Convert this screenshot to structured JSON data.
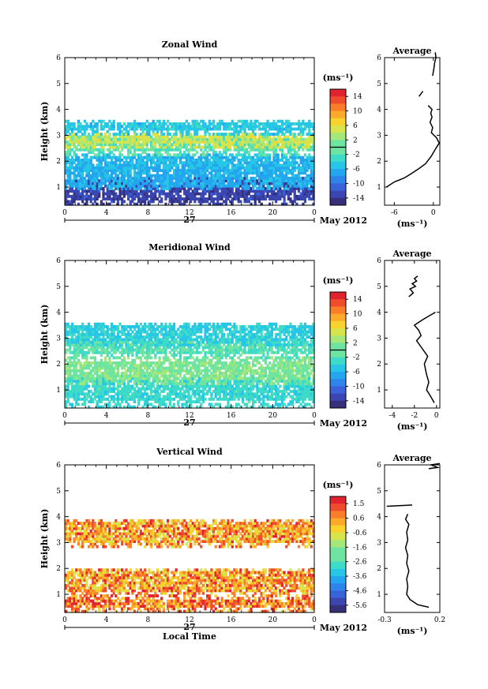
{
  "chart_data": [
    {
      "type": "heatmap",
      "title": "Zonal Wind",
      "ylabel": "Height (km)",
      "xlabel": "",
      "x_ticks": [
        "0",
        "4",
        "8",
        "12",
        "16",
        "20",
        "0"
      ],
      "y_ticks": [
        "1",
        "2",
        "3",
        "4",
        "5",
        "6"
      ],
      "xlim": [
        0,
        24
      ],
      "ylim": [
        0.3,
        6
      ],
      "date_center": "27",
      "date_right": "May 2012",
      "colorbar": {
        "unit": "(ms⁻¹)",
        "tick_labels": [
          "14",
          "10",
          "6",
          "2",
          "-2",
          "-6",
          "-10",
          "-14"
        ],
        "range": [
          -16,
          16
        ],
        "highlight_level": 0
      },
      "field_layers": [
        {
          "y0": 0.3,
          "y1": 1.4,
          "value": -13
        },
        {
          "y0": 0.8,
          "y1": 1.9,
          "value": -6
        },
        {
          "y0": 1.6,
          "y1": 2.3,
          "value": -5
        },
        {
          "y0": 2.2,
          "y1": 3.0,
          "value": -1
        },
        {
          "y0": 2.5,
          "y1": 3.1,
          "value": 4
        },
        {
          "y0": 3.0,
          "y1": 3.6,
          "value": -4
        }
      ],
      "profile": {
        "title": "Average",
        "xlabel": "(ms⁻¹)",
        "x_ticks": [
          "-6",
          "0"
        ],
        "xlim": [
          -7.5,
          1
        ],
        "x": [
          -7.2,
          -6,
          -4.5,
          -3.5,
          -2.3,
          -1.2,
          -0.3,
          0.4,
          0.9,
          0.5,
          -0.3,
          -0.1,
          -0.5,
          -0.2,
          -0.4,
          -0.2,
          -0.8
        ],
        "y": [
          1.0,
          1.2,
          1.35,
          1.5,
          1.7,
          1.9,
          2.2,
          2.5,
          2.7,
          2.9,
          3.1,
          3.3,
          3.5,
          3.7,
          3.85,
          4.0,
          4.15
        ],
        "upper_x": [
          -0.1,
          0.1,
          0.2,
          0.4,
          0.3
        ],
        "upper_y": [
          5.3,
          5.6,
          5.8,
          6.0,
          6.2
        ],
        "fragment_x": [
          -2.2,
          -1.6
        ],
        "fragment_y": [
          4.5,
          4.7
        ]
      }
    },
    {
      "type": "heatmap",
      "title": "Meridional Wind",
      "ylabel": "Height (km)",
      "xlabel": "",
      "x_ticks": [
        "0",
        "4",
        "8",
        "12",
        "16",
        "20",
        "0"
      ],
      "y_ticks": [
        "1",
        "2",
        "3",
        "4",
        "5",
        "6"
      ],
      "xlim": [
        0,
        24
      ],
      "ylim": [
        0.3,
        6
      ],
      "date_center": "27",
      "date_right": "May 2012",
      "colorbar": {
        "unit": "(ms⁻¹)",
        "tick_labels": [
          "14",
          "10",
          "6",
          "2",
          "-2",
          "-6",
          "-10",
          "-14"
        ],
        "range": [
          -16,
          16
        ],
        "highlight_level": 0
      },
      "field_layers": [
        {
          "y0": 0.3,
          "y1": 1.6,
          "value": -2.5
        },
        {
          "y0": 1.1,
          "y1": 2.3,
          "value": 0.5
        },
        {
          "y0": 2.2,
          "y1": 3.0,
          "value": -1
        },
        {
          "y0": 2.7,
          "y1": 3.6,
          "value": -3.5
        }
      ],
      "profile": {
        "title": "Average",
        "xlabel": "(ms⁻¹)",
        "x_ticks": [
          "-4",
          "-2",
          "0"
        ],
        "xlim": [
          -4.7,
          0.3
        ],
        "x": [
          -0.2,
          -0.6,
          -0.9,
          -0.7,
          -0.9,
          -1.1,
          -0.8,
          -1.3,
          -1.8,
          -1.4,
          -1.6,
          -2.0,
          -1.3,
          -0.7,
          -0.1
        ],
        "y": [
          0.5,
          0.8,
          1.0,
          1.3,
          1.6,
          2.0,
          2.3,
          2.6,
          2.9,
          3.1,
          3.3,
          3.5,
          3.7,
          3.85,
          4.0
        ],
        "upper_x": [
          -2.5,
          -2.1,
          -2.4,
          -1.9,
          -2.2,
          -1.8,
          -2.0,
          -1.7
        ],
        "upper_y": [
          4.6,
          4.75,
          4.9,
          5.0,
          5.1,
          5.2,
          5.3,
          5.4
        ]
      }
    },
    {
      "type": "heatmap",
      "title": "Vertical Wind",
      "ylabel": "Height (km)",
      "xlabel": "Local Time",
      "x_ticks": [
        "0",
        "4",
        "8",
        "12",
        "16",
        "20",
        "0"
      ],
      "y_ticks": [
        "1",
        "2",
        "3",
        "4",
        "5",
        "6"
      ],
      "xlim": [
        0,
        24
      ],
      "ylim": [
        0.3,
        6
      ],
      "date_center": "27",
      "date_right": "May 2012",
      "colorbar": {
        "unit": "(ms⁻¹)",
        "tick_labels": [
          "1.5",
          "0.6",
          "-0.6",
          "-1.6",
          "-2.6",
          "-3.6",
          "-4.6",
          "-5.6"
        ],
        "range": [
          -6.2,
          2.1
        ]
      },
      "field_layers": [
        {
          "y0": 0.3,
          "y1": 0.9,
          "value": 0.7
        },
        {
          "y0": 0.9,
          "y1": 2.0,
          "value": 0.3
        },
        {
          "y0": 2.8,
          "y1": 3.9,
          "value": 0.3
        }
      ],
      "profile": {
        "title": "Average",
        "xlabel": "(ms⁻¹)",
        "x_ticks": [
          "-0.3",
          "0.2"
        ],
        "xlim": [
          -0.3,
          0.2
        ],
        "x": [
          0.1,
          0.0,
          -0.07,
          -0.1,
          -0.09,
          -0.1,
          -0.08,
          -0.1,
          -0.09,
          -0.11,
          -0.09,
          -0.1,
          -0.08,
          -0.11,
          -0.1,
          -0.09
        ],
        "y": [
          0.5,
          0.6,
          0.8,
          1.0,
          1.3,
          1.6,
          1.9,
          2.2,
          2.5,
          2.8,
          3.1,
          3.4,
          3.7,
          3.9,
          4.0,
          4.1
        ],
        "fragment_x": [
          -0.28,
          -0.05
        ],
        "fragment_y": [
          4.4,
          4.45
        ],
        "upper_x": [
          0.1,
          0.18,
          0.12,
          0.2
        ],
        "upper_y": [
          5.85,
          5.9,
          6.0,
          6.05
        ]
      }
    }
  ]
}
